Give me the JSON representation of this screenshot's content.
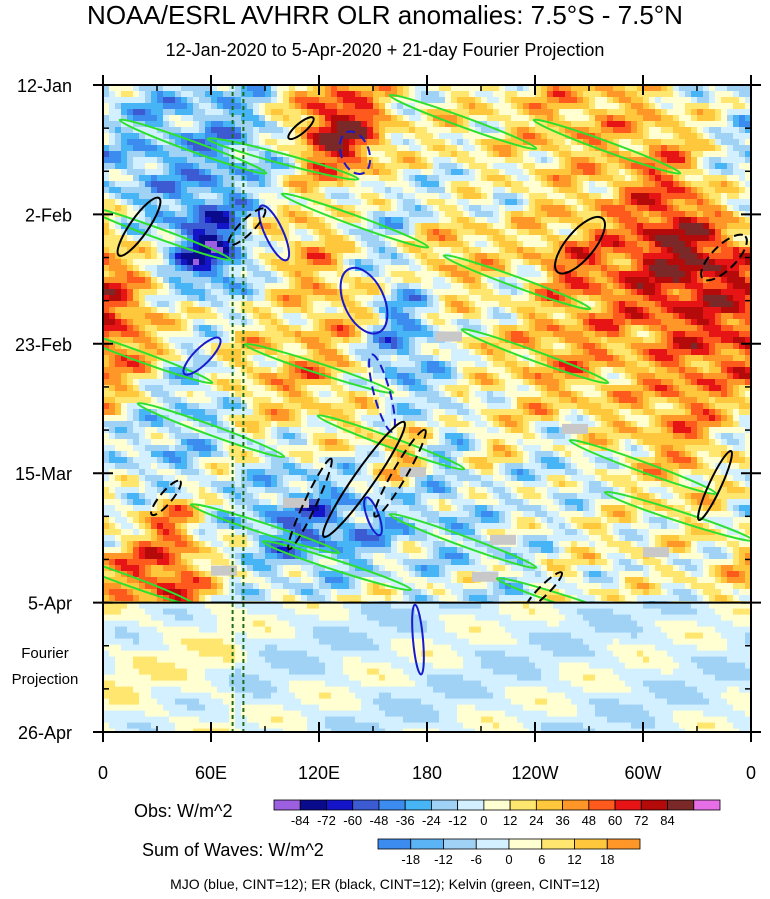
{
  "chart_data": {
    "type": "heatmap",
    "title": "NOAA/ESRL AVHRR OLR anomalies: 7.5°S - 7.5°N",
    "subtitle": "12-Jan-2020 to 5-Apr-2020 + 21-day Fourier Projection",
    "y_tick_labels": [
      "12-Jan",
      "2-Feb",
      "23-Feb",
      "15-Mar",
      "5-Apr",
      "26-Apr"
    ],
    "y_side_label": [
      "Fourier",
      "Projection"
    ],
    "x_tick_labels": [
      "0",
      "60E",
      "120E",
      "180",
      "120W",
      "60W",
      "0"
    ],
    "x_range_deg_east": [
      0,
      360
    ],
    "time_range_days": [
      0,
      105
    ],
    "observation_end_day": 84,
    "obs_colorbar": {
      "label": "Obs: W/m^2",
      "levels": [
        "-84",
        "-72",
        "-60",
        "-48",
        "-36",
        "-24",
        "-12",
        "0",
        "12",
        "24",
        "36",
        "48",
        "60",
        "72",
        "84"
      ],
      "colors": [
        "#9b5fe0",
        "#0a0a8c",
        "#1414c8",
        "#3c5ad2",
        "#3c8cf0",
        "#46b4f5",
        "#a0d2f5",
        "#d2f0ff",
        "#ffffd2",
        "#ffe66e",
        "#ffc83c",
        "#ff9628",
        "#ff5a1e",
        "#e61414",
        "#b40a0a",
        "#7a2828",
        "#e66ee6"
      ]
    },
    "waves_colorbar": {
      "label": "Sum of Waves: W/m^2",
      "levels": [
        "-18",
        "-12",
        "-6",
        "0",
        "6",
        "12",
        "18"
      ],
      "colors": [
        "#3c8cf0",
        "#5ab4f5",
        "#a0d2f5",
        "#d2f0ff",
        "#ffffd2",
        "#ffe66e",
        "#ffc83c",
        "#ff9628"
      ]
    },
    "footer": "MJO (blue, CINT=12); ER (black, CINT=12); Kelvin (green, CINT=12)",
    "legend_position": "bottom",
    "contour_series": [
      {
        "name": "MJO",
        "color": "#1a1acc"
      },
      {
        "name": "ER",
        "color": "#000000"
      },
      {
        "name": "Kelvin",
        "color": "#2ee02e"
      }
    ]
  }
}
